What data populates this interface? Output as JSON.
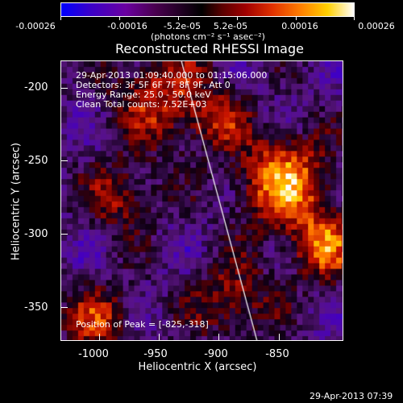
{
  "colorbar": {
    "ticks": [
      "-0.00026",
      "-0.00016",
      "-5.2e-05",
      "5.2e-05",
      "0.00016",
      "0.00026"
    ],
    "unit_label": "(photons cm⁻² s⁻¹ asec⁻²)",
    "colors": [
      "#0000ff",
      "#6a00a0",
      "#000000",
      "#a00000",
      "#ff8000",
      "#ffd000",
      "#ffffff"
    ]
  },
  "plot": {
    "title": "Reconstructed RHESSI Image",
    "info_lines": [
      "29-Apr-2013 01:09:40.000 to 01:15:06.000",
      "Detectors: 3F 5F 6F 7F 8F 9F, Att 0",
      "Energy Range: 25.0 - 50.0 keV",
      "Clean     Total counts: 7.52E+03"
    ],
    "peak_label": "Position of Peak = [-825,-318]",
    "xlabel": "Heliocentric X (arcsec)",
    "ylabel": "Heliocentric Y (arcsec)",
    "xticks": [
      "-1000",
      "-950",
      "-900",
      "-850"
    ],
    "yticks": [
      "-200",
      "-250",
      "-300",
      "-350"
    ]
  },
  "timestamp": "29-Apr-2013 07:39"
}
